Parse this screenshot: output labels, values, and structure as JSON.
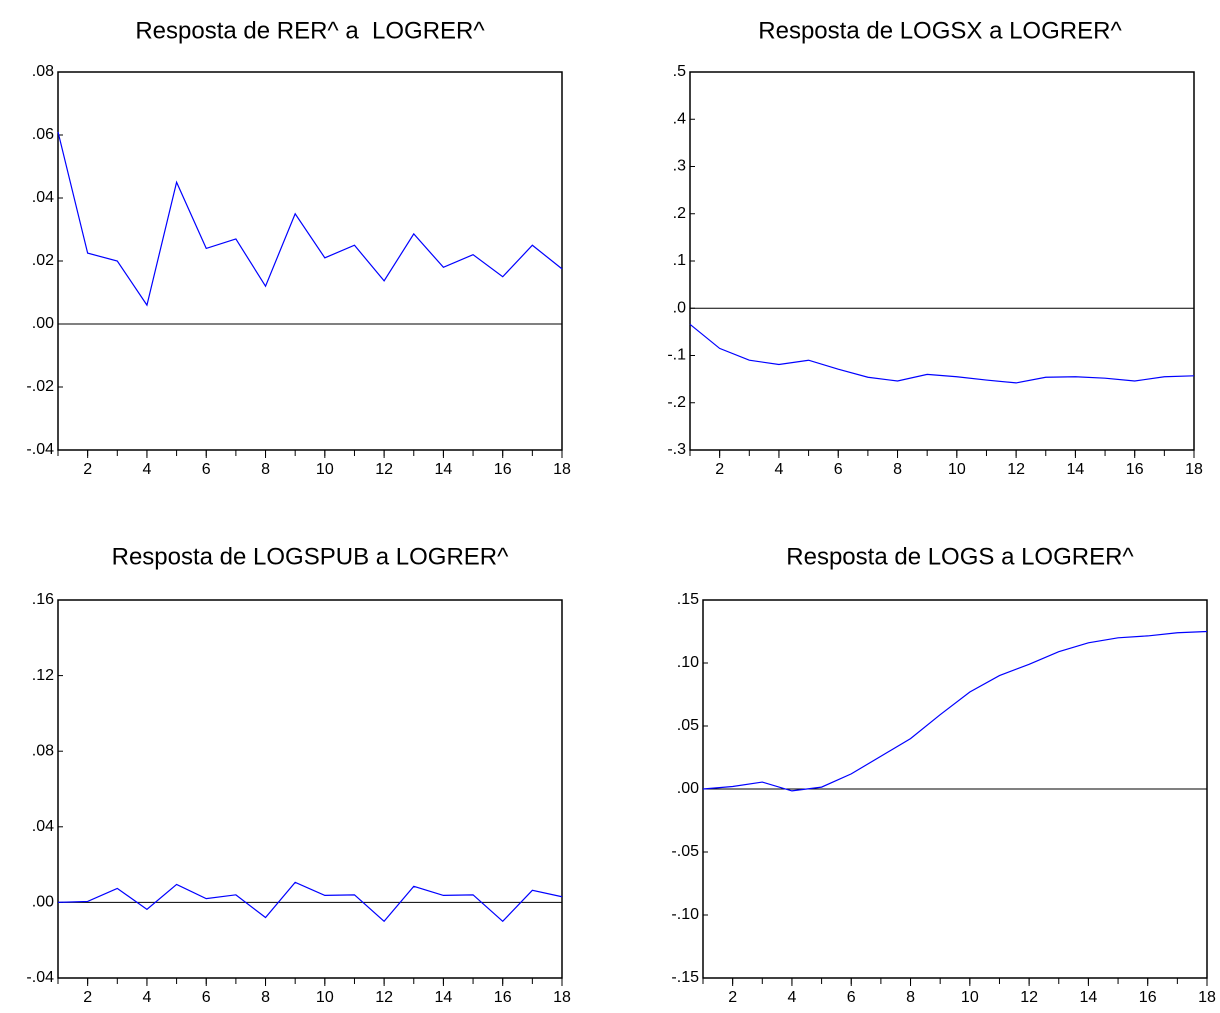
{
  "chart_data": [
    {
      "type": "line",
      "title": "Resposta de RER^ a  LOGRER^",
      "x": [
        1,
        2,
        3,
        4,
        5,
        6,
        7,
        8,
        9,
        10,
        11,
        12,
        13,
        14,
        15,
        16,
        17,
        18
      ],
      "series": [
        {
          "color": "#0000ff",
          "values": [
            0.061,
            0.0225,
            0.02,
            0.006,
            0.045,
            0.024,
            0.027,
            0.012,
            0.035,
            0.021,
            0.025,
            0.0137,
            0.0286,
            0.018,
            0.022,
            0.015,
            0.025,
            0.0175
          ]
        }
      ],
      "xlim": [
        1,
        18
      ],
      "xticks": [
        2,
        4,
        6,
        8,
        10,
        12,
        14,
        16,
        18
      ],
      "ylim": [
        -0.04,
        0.08
      ],
      "yticks": [
        {
          "value": 0.08,
          "label": ".08"
        },
        {
          "value": 0.06,
          "label": ".06"
        },
        {
          "value": 0.04,
          "label": ".04"
        },
        {
          "value": 0.02,
          "label": ".02"
        },
        {
          "value": 0,
          "label": ".00"
        },
        {
          "value": -0.02,
          "label": "-.02"
        },
        {
          "value": -0.04,
          "label": "-.04"
        }
      ]
    },
    {
      "type": "line",
      "title": "Resposta de LOGSX a LOGRER^",
      "x": [
        1,
        2,
        3,
        4,
        5,
        6,
        7,
        8,
        9,
        10,
        11,
        12,
        13,
        14,
        15,
        16,
        17,
        18
      ],
      "series": [
        {
          "color": "#0000ff",
          "values": [
            -0.034,
            -0.085,
            -0.11,
            -0.119,
            -0.11,
            -0.129,
            -0.146,
            -0.154,
            -0.14,
            -0.145,
            -0.152,
            -0.158,
            -0.146,
            -0.145,
            -0.148,
            -0.154,
            -0.145,
            -0.143
          ]
        }
      ],
      "xlim": [
        1,
        18
      ],
      "xticks": [
        2,
        4,
        6,
        8,
        10,
        12,
        14,
        16,
        18
      ],
      "ylim": [
        -0.3,
        0.5
      ],
      "yticks": [
        {
          "value": 0.5,
          "label": ".5"
        },
        {
          "value": 0.4,
          "label": ".4"
        },
        {
          "value": 0.3,
          "label": ".3"
        },
        {
          "value": 0.2,
          "label": ".2"
        },
        {
          "value": 0.1,
          "label": ".1"
        },
        {
          "value": 0,
          "label": ".0"
        },
        {
          "value": -0.1,
          "label": "-.1"
        },
        {
          "value": -0.2,
          "label": "-.2"
        },
        {
          "value": -0.3,
          "label": "-.3"
        }
      ]
    },
    {
      "type": "line",
      "title": "Resposta de LOGSPUB a LOGRER^",
      "x": [
        1,
        2,
        3,
        4,
        5,
        6,
        7,
        8,
        9,
        10,
        11,
        12,
        13,
        14,
        15,
        16,
        17,
        18
      ],
      "series": [
        {
          "color": "#0000ff",
          "values": [
            0,
            0.0005,
            0.0074,
            -0.0037,
            0.0095,
            0.002,
            0.004,
            -0.008,
            0.0106,
            0.0037,
            0.004,
            -0.01,
            0.0085,
            0.0037,
            0.004,
            -0.01,
            0.0064,
            0.003
          ]
        }
      ],
      "xlim": [
        1,
        18
      ],
      "xticks": [
        2,
        4,
        6,
        8,
        10,
        12,
        14,
        16,
        18
      ],
      "ylim": [
        -0.04,
        0.16
      ],
      "yticks": [
        {
          "value": 0.16,
          "label": ".16"
        },
        {
          "value": 0.12,
          "label": ".12"
        },
        {
          "value": 0.08,
          "label": ".08"
        },
        {
          "value": 0.04,
          "label": ".04"
        },
        {
          "value": 0,
          "label": ".00"
        },
        {
          "value": -0.04,
          "label": "-.04"
        }
      ]
    },
    {
      "type": "line",
      "title": "Resposta de LOGS a LOGRER^",
      "x": [
        1,
        2,
        3,
        4,
        5,
        6,
        7,
        8,
        9,
        10,
        11,
        12,
        13,
        14,
        15,
        16,
        17,
        18
      ],
      "series": [
        {
          "color": "#0000ff",
          "values": [
            0,
            0.002,
            0.0055,
            -0.0015,
            0.0015,
            0.012,
            0.026,
            0.04,
            0.059,
            0.077,
            0.09,
            0.099,
            0.109,
            0.116,
            0.12,
            0.1215,
            0.124,
            0.125
          ]
        }
      ],
      "xlim": [
        1,
        18
      ],
      "xticks": [
        2,
        4,
        6,
        8,
        10,
        12,
        14,
        16,
        18
      ],
      "ylim": [
        -0.15,
        0.15
      ],
      "yticks": [
        {
          "value": 0.15,
          "label": ".15"
        },
        {
          "value": 0.1,
          "label": ".10"
        },
        {
          "value": 0.05,
          "label": ".05"
        },
        {
          "value": 0,
          "label": ".00"
        },
        {
          "value": -0.05,
          "label": "-.05"
        },
        {
          "value": -0.1,
          "label": "-.10"
        },
        {
          "value": -0.15,
          "label": "-.15"
        }
      ]
    }
  ]
}
